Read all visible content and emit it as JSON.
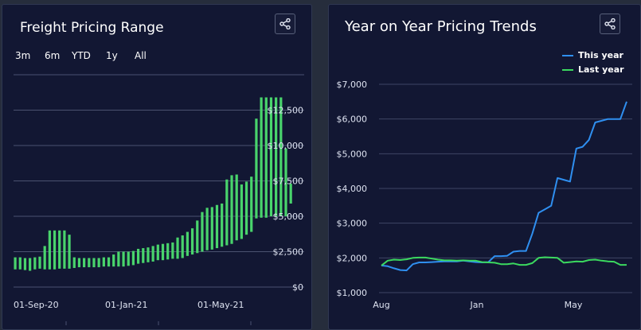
{
  "panel_left": {
    "title": "Freight Pricing Range",
    "range_buttons": [
      "3m",
      "6m",
      "YTD",
      "1y",
      "All"
    ]
  },
  "panel_right": {
    "title": "Year on Year Pricing Trends"
  },
  "chart_data": [
    {
      "type": "bar",
      "subtype": "range",
      "title": "Freight Pricing Range",
      "xlabel": "",
      "ylabel": "",
      "x_tick_labels": [
        "01-Sep-20",
        "01-Jan-21",
        "01-May-21"
      ],
      "y_tick_labels": [
        "$0",
        "$2,500",
        "$5,000",
        "$7,500",
        "$10,000",
        "$12,500"
      ],
      "ylim": [
        0,
        15000
      ],
      "color": "#49d46c",
      "grid": true,
      "ranges": [
        [
          1250,
          2100
        ],
        [
          1250,
          2100
        ],
        [
          1200,
          2050
        ],
        [
          1150,
          2050
        ],
        [
          1250,
          2100
        ],
        [
          1300,
          2150
        ],
        [
          1250,
          2900
        ],
        [
          1250,
          4000
        ],
        [
          1250,
          4000
        ],
        [
          1300,
          4000
        ],
        [
          1300,
          4000
        ],
        [
          1300,
          3700
        ],
        [
          1350,
          2100
        ],
        [
          1400,
          2050
        ],
        [
          1400,
          2050
        ],
        [
          1400,
          2050
        ],
        [
          1400,
          2050
        ],
        [
          1400,
          2050
        ],
        [
          1450,
          2100
        ],
        [
          1450,
          2100
        ],
        [
          1450,
          2300
        ],
        [
          1450,
          2500
        ],
        [
          1450,
          2500
        ],
        [
          1500,
          2500
        ],
        [
          1550,
          2550
        ],
        [
          1650,
          2700
        ],
        [
          1700,
          2750
        ],
        [
          1750,
          2800
        ],
        [
          1800,
          2900
        ],
        [
          1900,
          3000
        ],
        [
          1900,
          3050
        ],
        [
          1950,
          3100
        ],
        [
          2000,
          3150
        ],
        [
          2000,
          3500
        ],
        [
          2050,
          3650
        ],
        [
          2200,
          3900
        ],
        [
          2300,
          4150
        ],
        [
          2400,
          4700
        ],
        [
          2500,
          5300
        ],
        [
          2600,
          5600
        ],
        [
          2650,
          5650
        ],
        [
          2750,
          5800
        ],
        [
          2850,
          5900
        ],
        [
          2950,
          7600
        ],
        [
          3050,
          7900
        ],
        [
          3300,
          7950
        ],
        [
          3400,
          7250
        ],
        [
          3700,
          7450
        ],
        [
          3900,
          7800
        ],
        [
          4850,
          11900
        ],
        [
          4900,
          13400
        ],
        [
          4900,
          13400
        ],
        [
          5000,
          13400
        ],
        [
          5000,
          13400
        ],
        [
          5000,
          13400
        ],
        [
          5000,
          9800
        ],
        [
          5900,
          7300
        ]
      ]
    },
    {
      "type": "line",
      "title": "Year on Year Pricing Trends",
      "xlabel": "",
      "ylabel": "",
      "x_tick_labels": [
        "Aug",
        "Jan",
        "May"
      ],
      "y_tick_labels": [
        "$1,000",
        "$2,000",
        "$3,000",
        "$4,000",
        "$5,000",
        "$6,000",
        "$7,000"
      ],
      "ylim": [
        1000,
        7000
      ],
      "legend_position": "top-right",
      "grid": true,
      "series": [
        {
          "name": "This year",
          "color": "#2f8ff0",
          "values": [
            1780,
            1760,
            1700,
            1650,
            1640,
            1820,
            1870,
            1870,
            1880,
            1890,
            1900,
            1900,
            1900,
            1920,
            1900,
            1880,
            1870,
            1880,
            2050,
            2050,
            2060,
            2180,
            2200,
            2200,
            2700,
            3300,
            3400,
            3500,
            4300,
            4250,
            4200,
            5150,
            5200,
            5400,
            5900,
            5950,
            6000,
            6000,
            6000,
            6500
          ]
        },
        {
          "name": "Last year",
          "color": "#3bd95f",
          "values": [
            1780,
            1920,
            1950,
            1940,
            1960,
            2000,
            2010,
            2010,
            1980,
            1950,
            1930,
            1930,
            1920,
            1930,
            1920,
            1920,
            1880,
            1870,
            1860,
            1820,
            1820,
            1840,
            1800,
            1800,
            1850,
            2000,
            2020,
            2010,
            2000,
            1860,
            1880,
            1900,
            1890,
            1940,
            1950,
            1920,
            1900,
            1890,
            1800,
            1800
          ]
        }
      ]
    }
  ]
}
